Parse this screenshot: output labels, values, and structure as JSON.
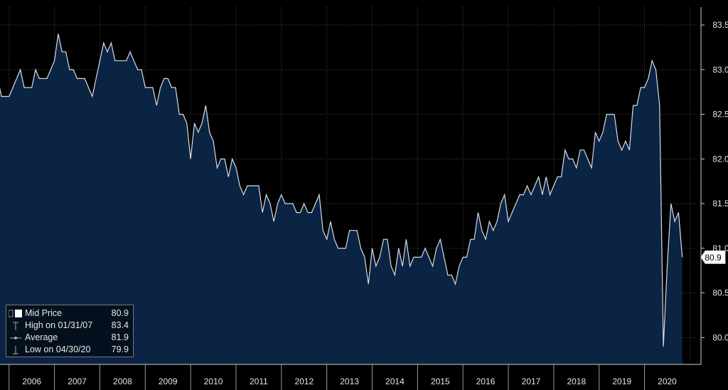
{
  "chart_data": {
    "type": "area",
    "title": "",
    "xlabel": "",
    "ylabel": "",
    "ylim": [
      79.7,
      83.7
    ],
    "yticks": [
      80.0,
      80.5,
      81.0,
      81.5,
      82.0,
      82.5,
      83.0,
      83.5
    ],
    "ytick_labels": [
      "80.0",
      "80.5",
      "81.0",
      "81.5",
      "82.0",
      "82.5",
      "83.0",
      "83.5"
    ],
    "x_start": 2005.75,
    "x_step": 0.08333,
    "year_labels": [
      "2006",
      "2007",
      "2008",
      "2009",
      "2010",
      "2011",
      "2012",
      "2013",
      "2014",
      "2015",
      "2016",
      "2017",
      "2018",
      "2019",
      "2020"
    ],
    "series": [
      {
        "name": "Mid Price",
        "values": [
          82.9,
          82.7,
          82.7,
          82.7,
          82.8,
          82.9,
          83.0,
          82.8,
          82.8,
          82.8,
          83.0,
          82.9,
          82.9,
          82.9,
          83.0,
          83.1,
          83.4,
          83.2,
          83.2,
          83.0,
          83.0,
          82.9,
          82.9,
          82.9,
          82.8,
          82.7,
          82.9,
          83.1,
          83.3,
          83.2,
          83.3,
          83.1,
          83.1,
          83.1,
          83.1,
          83.2,
          83.1,
          83.0,
          83.0,
          82.8,
          82.8,
          82.8,
          82.6,
          82.8,
          82.9,
          82.9,
          82.8,
          82.8,
          82.5,
          82.5,
          82.4,
          82.0,
          82.4,
          82.3,
          82.4,
          82.6,
          82.3,
          82.2,
          81.9,
          82.0,
          82.0,
          81.8,
          82.0,
          81.9,
          81.7,
          81.6,
          81.7,
          81.7,
          81.7,
          81.7,
          81.4,
          81.6,
          81.5,
          81.3,
          81.5,
          81.6,
          81.5,
          81.5,
          81.5,
          81.4,
          81.4,
          81.5,
          81.4,
          81.4,
          81.5,
          81.6,
          81.2,
          81.1,
          81.3,
          81.1,
          81.0,
          81.0,
          81.0,
          81.2,
          81.2,
          81.2,
          81.0,
          80.9,
          80.6,
          81.0,
          80.8,
          80.9,
          81.1,
          81.1,
          80.8,
          80.7,
          81.0,
          80.8,
          81.1,
          80.8,
          80.9,
          80.9,
          80.9,
          81.0,
          80.9,
          80.8,
          81.0,
          81.1,
          80.9,
          80.7,
          80.7,
          80.6,
          80.8,
          80.9,
          80.9,
          81.1,
          81.1,
          81.4,
          81.2,
          81.1,
          81.3,
          81.2,
          81.3,
          81.5,
          81.6,
          81.3,
          81.4,
          81.5,
          81.6,
          81.6,
          81.7,
          81.6,
          81.7,
          81.8,
          81.6,
          81.8,
          81.6,
          81.7,
          81.8,
          81.8,
          82.1,
          82.0,
          82.0,
          81.9,
          82.1,
          82.1,
          82.0,
          81.9,
          82.3,
          82.2,
          82.3,
          82.5,
          82.5,
          82.5,
          82.2,
          82.1,
          82.2,
          82.1,
          82.6,
          82.6,
          82.8,
          82.8,
          82.9,
          83.1,
          83.0,
          82.6,
          79.9,
          80.8,
          81.5,
          81.3,
          81.4,
          80.9
        ]
      }
    ],
    "last_value": "80.9",
    "legend": [
      {
        "label": "Mid Price",
        "value": "80.9"
      },
      {
        "label": "High on 01/31/07",
        "value": "83.4"
      },
      {
        "label": "Average",
        "value": "81.9"
      },
      {
        "label": "Low on 04/30/20",
        "value": "79.9"
      }
    ],
    "colors": {
      "fill": "#0b2444",
      "line": "#d8dde6",
      "grid": "#4a4a4a",
      "background": "#000000"
    }
  }
}
